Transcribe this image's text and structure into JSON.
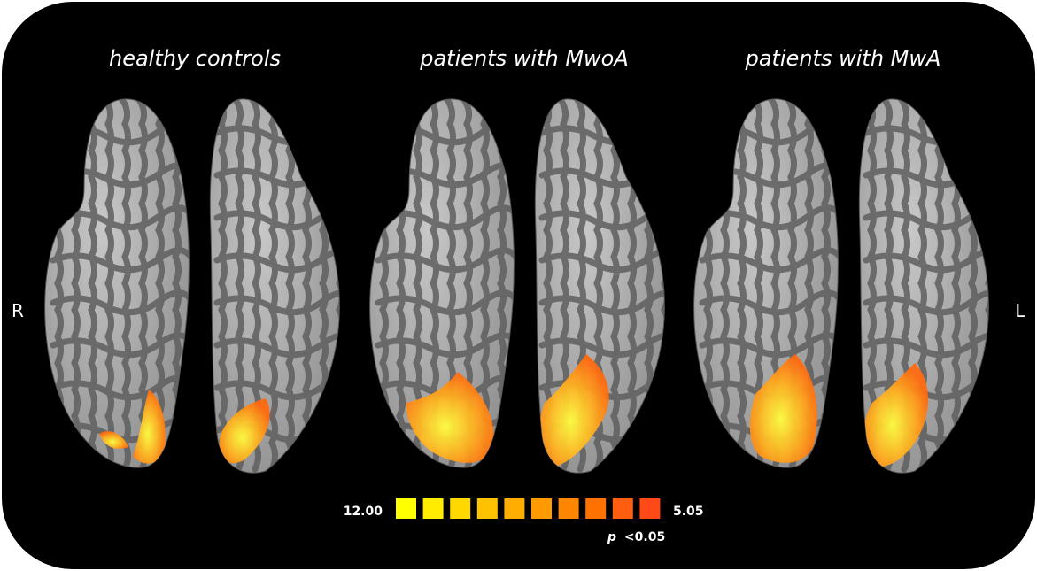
{
  "panels": [
    {
      "title": "healthy controls"
    },
    {
      "title": "patients with MwoA"
    },
    {
      "title": "patients with MwA"
    }
  ],
  "side_labels": {
    "left": "R",
    "right": "L"
  },
  "colorbar": {
    "max_label": "12.00",
    "min_label": "5.05",
    "significance": {
      "symbol": "p",
      "threshold": "<0.05"
    }
  }
}
